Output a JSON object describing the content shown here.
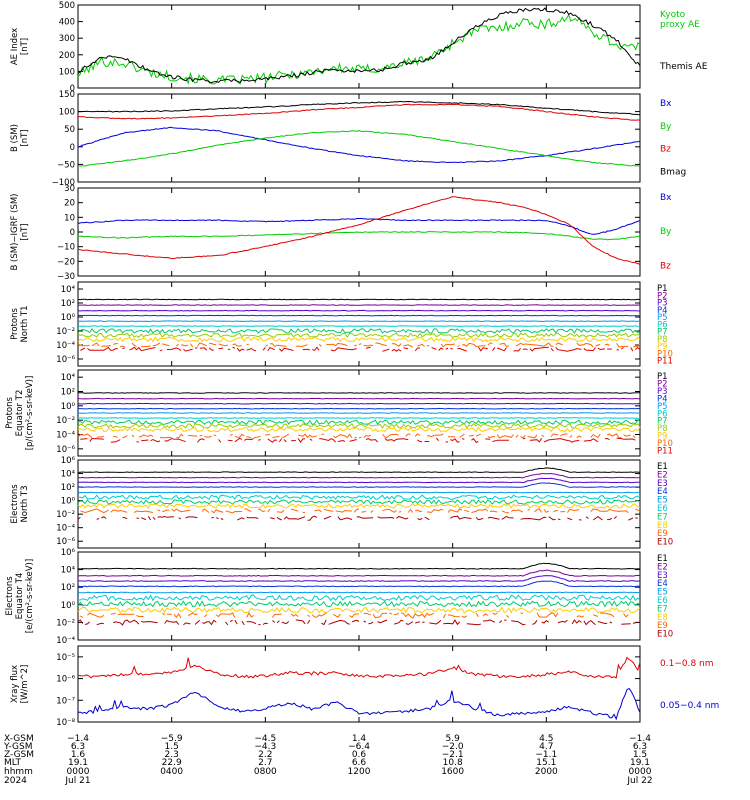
{
  "chart_data": [
    {
      "type": "line",
      "id": "ae",
      "ylabel": "AE Index\n[nT]",
      "ylim": [
        0,
        500
      ],
      "ticks": [
        0,
        100,
        200,
        300,
        400,
        500
      ],
      "tick_labels": [
        "0",
        "100",
        "200",
        "300",
        "400",
        "500"
      ],
      "series": [
        {
          "name": "Kyoto\nproxy AE",
          "color": "#00cc00",
          "x": [
            0,
            1,
            2,
            3,
            4,
            5,
            6,
            7,
            8,
            9,
            10,
            11,
            12,
            13,
            14,
            15,
            16,
            17,
            18,
            19,
            20,
            21,
            22,
            23,
            24
          ],
          "y": [
            80,
            160,
            150,
            95,
            70,
            55,
            45,
            50,
            60,
            80,
            100,
            120,
            110,
            120,
            150,
            180,
            270,
            350,
            360,
            400,
            380,
            430,
            340,
            260,
            240
          ]
        },
        {
          "name": "Themis AE",
          "color": "#000000",
          "x": [
            0,
            1,
            2,
            3,
            4,
            5,
            6,
            7,
            8,
            9,
            10,
            11,
            12,
            13,
            14,
            15,
            16,
            17,
            18,
            19,
            20,
            21,
            22,
            23,
            24
          ],
          "y": [
            95,
            190,
            175,
            110,
            65,
            50,
            40,
            45,
            55,
            70,
            95,
            110,
            100,
            110,
            150,
            175,
            270,
            370,
            440,
            470,
            470,
            450,
            380,
            290,
            130
          ]
        }
      ]
    },
    {
      "type": "line",
      "id": "bfield",
      "ylabel": "B (SM)\n[nT]",
      "ylim": [
        -100,
        150
      ],
      "ticks": [
        -100,
        -50,
        0,
        50,
        100,
        150
      ],
      "tick_labels": [
        "−100",
        "−50",
        "0",
        "50",
        "100",
        "150"
      ],
      "series": [
        {
          "name": "Bx",
          "color": "#0000dd",
          "x": [
            0,
            2,
            4,
            6,
            8,
            10,
            12,
            14,
            16,
            18,
            20,
            22,
            24
          ],
          "y": [
            0,
            40,
            55,
            45,
            20,
            -5,
            -25,
            -40,
            -45,
            -40,
            -25,
            -5,
            15
          ]
        },
        {
          "name": "By",
          "color": "#00cc00",
          "x": [
            0,
            2,
            4,
            6,
            8,
            10,
            12,
            14,
            16,
            18,
            20,
            22,
            24
          ],
          "y": [
            -55,
            -40,
            -20,
            5,
            25,
            40,
            45,
            35,
            15,
            -5,
            -25,
            -45,
            -55
          ]
        },
        {
          "name": "Bz",
          "color": "#dd0000",
          "x": [
            0,
            2,
            4,
            6,
            8,
            10,
            12,
            14,
            16,
            18,
            20,
            22,
            24
          ],
          "y": [
            85,
            80,
            82,
            88,
            95,
            105,
            112,
            120,
            120,
            115,
            100,
            85,
            75
          ]
        },
        {
          "name": "Bmag",
          "color": "#000000",
          "x": [
            0,
            2,
            4,
            6,
            8,
            10,
            12,
            14,
            16,
            18,
            20,
            22,
            24
          ],
          "y": [
            100,
            100,
            102,
            108,
            113,
            120,
            125,
            128,
            125,
            120,
            110,
            100,
            92
          ]
        }
      ]
    },
    {
      "type": "line",
      "id": "bdiff",
      "ylabel": "B (SM)−IGRF (SM)\n[nT]",
      "ylim": [
        -30,
        30
      ],
      "ticks": [
        -30,
        -20,
        -10,
        0,
        10,
        20,
        30
      ],
      "tick_labels": [
        "−30",
        "−20",
        "−10",
        "0",
        "10",
        "20",
        "30"
      ],
      "series": [
        {
          "name": "Bx",
          "color": "#0000dd",
          "x": [
            0,
            2,
            4,
            6,
            8,
            10,
            12,
            14,
            16,
            18,
            20,
            21,
            22,
            23,
            24
          ],
          "y": [
            6,
            8,
            8,
            8,
            7,
            8,
            9,
            8,
            8,
            8,
            8,
            4,
            -2,
            2,
            8
          ]
        },
        {
          "name": "By",
          "color": "#00cc00",
          "x": [
            0,
            2,
            4,
            6,
            8,
            10,
            12,
            14,
            16,
            18,
            20,
            21,
            22,
            23,
            24
          ],
          "y": [
            -3,
            -4,
            -3,
            -3,
            -2,
            -1,
            0,
            0,
            0,
            0,
            -1,
            -3,
            -5,
            -5,
            -3
          ]
        },
        {
          "name": "Bz",
          "color": "#dd0000",
          "x": [
            0,
            2,
            4,
            6,
            8,
            10,
            12,
            14,
            16,
            18,
            19,
            20,
            21,
            22,
            23,
            24
          ],
          "y": [
            -12,
            -15,
            -18,
            -16,
            -10,
            -3,
            5,
            15,
            24,
            20,
            17,
            12,
            5,
            -10,
            -18,
            -22
          ]
        }
      ]
    },
    {
      "type": "line",
      "id": "protons_t1",
      "log": true,
      "ylabel": "Protons\nNorth T1",
      "ylim": [
        -7,
        5
      ],
      "ticks": [
        -6,
        -4,
        -2,
        0,
        2,
        4
      ],
      "tick_labels": [
        "10⁻⁶",
        "10⁻⁴",
        "10⁻²",
        "10⁰",
        "10²",
        "10⁴"
      ],
      "channels": [
        {
          "name": "P1",
          "color": "#000000",
          "level": 2.5
        },
        {
          "name": "P2",
          "color": "#7a0099",
          "level": 1.7
        },
        {
          "name": "P3",
          "color": "#5500cc",
          "level": 0.9
        },
        {
          "name": "P4",
          "color": "#0033dd",
          "level": 0.2
        },
        {
          "name": "P5",
          "color": "#0099ee",
          "level": -0.6
        },
        {
          "name": "P6",
          "color": "#00cccc",
          "level": -1.3
        },
        {
          "name": "P7",
          "color": "#00cc66",
          "level": -2.0
        },
        {
          "name": "P8",
          "color": "#99cc00",
          "level": -2.6
        },
        {
          "name": "P9",
          "color": "#ffcc00",
          "level": -3.2
        },
        {
          "name": "P10",
          "color": "#ff6600",
          "level": -4.0
        },
        {
          "name": "P11",
          "color": "#dd0000",
          "level": -4.6
        }
      ]
    },
    {
      "type": "line",
      "id": "protons_t2",
      "log": true,
      "ylabel": "Protons\nEquator T2\n[p/(cm²-s-sr-keV)]",
      "ylim": [
        -7,
        5
      ],
      "ticks": [
        -6,
        -4,
        -2,
        0,
        2,
        4
      ],
      "tick_labels": [
        "10⁻⁶",
        "10⁻⁴",
        "10⁻²",
        "10⁰",
        "10²",
        "10⁴"
      ],
      "channels": [
        {
          "name": "P1",
          "color": "#000000",
          "level": 1.8
        },
        {
          "name": "P2",
          "color": "#7a0099",
          "level": 1.0
        },
        {
          "name": "P3",
          "color": "#5500cc",
          "level": 0.3
        },
        {
          "name": "P4",
          "color": "#0033dd",
          "level": -0.4
        },
        {
          "name": "P5",
          "color": "#0099ee",
          "level": -1.0
        },
        {
          "name": "P6",
          "color": "#00cccc",
          "level": -1.7
        },
        {
          "name": "P7",
          "color": "#00cc66",
          "level": -2.3
        },
        {
          "name": "P8",
          "color": "#99cc00",
          "level": -2.8
        },
        {
          "name": "P9",
          "color": "#ffcc00",
          "level": -3.3
        },
        {
          "name": "P10",
          "color": "#ff6600",
          "level": -4.2
        },
        {
          "name": "P11",
          "color": "#dd0000",
          "level": -4.8
        }
      ]
    },
    {
      "type": "line",
      "id": "electrons_t3",
      "log": true,
      "ylabel": "Electrons\nNorth T3",
      "ylim": [
        -7,
        6
      ],
      "ticks": [
        -6,
        -4,
        -2,
        0,
        2,
        4,
        6
      ],
      "tick_labels": [
        "10⁻⁶",
        "10⁻⁴",
        "10⁻²",
        "10⁰",
        "10²",
        "10⁴",
        "10⁶"
      ],
      "channels": [
        {
          "name": "E1",
          "color": "#000000",
          "level": 4.2
        },
        {
          "name": "E2",
          "color": "#7a0099",
          "level": 3.4
        },
        {
          "name": "E3",
          "color": "#5500cc",
          "level": 2.7
        },
        {
          "name": "E4",
          "color": "#0033dd",
          "level": 2.0
        },
        {
          "name": "E5",
          "color": "#0099ee",
          "level": 1.2
        },
        {
          "name": "E6",
          "color": "#00cccc",
          "level": 0.5
        },
        {
          "name": "E7",
          "color": "#00cc66",
          "level": -0.2
        },
        {
          "name": "E8",
          "color": "#ffcc00",
          "level": -0.8
        },
        {
          "name": "E9",
          "color": "#ff6600",
          "level": -1.5
        },
        {
          "name": "E10",
          "color": "#aa0000",
          "level": -2.6
        }
      ]
    },
    {
      "type": "line",
      "id": "electrons_t4",
      "log": true,
      "ylabel": "Electrons\nEquator T4\n[e/(cm²-s-sr-keV)]",
      "ylim": [
        -4,
        6
      ],
      "ticks": [
        -4,
        -2,
        0,
        2,
        4,
        6
      ],
      "tick_labels": [
        "10⁻⁴",
        "10⁻²",
        "10⁰",
        "10²",
        "10⁴",
        "10⁶"
      ],
      "channels": [
        {
          "name": "E1",
          "color": "#000000",
          "level": 4.1
        },
        {
          "name": "E2",
          "color": "#7a0099",
          "level": 3.3
        },
        {
          "name": "E3",
          "color": "#5500cc",
          "level": 2.7
        },
        {
          "name": "E4",
          "color": "#0033dd",
          "level": 2.1
        },
        {
          "name": "E5",
          "color": "#0099ee",
          "level": 1.4
        },
        {
          "name": "E6",
          "color": "#00cccc",
          "level": 0.8
        },
        {
          "name": "E7",
          "color": "#00cc66",
          "level": 0.1
        },
        {
          "name": "E8",
          "color": "#ffcc00",
          "level": -0.6
        },
        {
          "name": "E9",
          "color": "#ff6600",
          "level": -1.2
        },
        {
          "name": "E10",
          "color": "#aa0000",
          "level": -2.0
        }
      ]
    },
    {
      "type": "line",
      "id": "xray",
      "log": true,
      "ylabel": "Xray flux\n[W/m^2]",
      "ylim": [
        -8,
        -4.5
      ],
      "ticks": [
        -8,
        -7,
        -6,
        -5
      ],
      "tick_labels": [
        "10⁻⁸",
        "10⁻⁷",
        "10⁻⁶",
        "10⁻⁵"
      ],
      "series": [
        {
          "name": "0.1−0.8 nm",
          "color": "#dd0000",
          "x": [
            0,
            1,
            2,
            3,
            4,
            5,
            6,
            7,
            8,
            9,
            10,
            11,
            12,
            13,
            14,
            15,
            16,
            17,
            18,
            19,
            20,
            21,
            22,
            23,
            23.5,
            24
          ],
          "y": [
            -5.9,
            -5.9,
            -5.8,
            -5.8,
            -5.7,
            -5.4,
            -5.8,
            -5.9,
            -5.9,
            -5.7,
            -5.8,
            -5.7,
            -5.9,
            -5.9,
            -5.8,
            -5.8,
            -5.5,
            -5.8,
            -5.9,
            -5.9,
            -5.8,
            -5.7,
            -5.9,
            -5.9,
            -5.0,
            -5.7
          ]
        },
        {
          "name": "0.05−0.4 nm",
          "color": "#0000cc",
          "x": [
            0,
            1,
            2,
            3,
            4,
            5,
            6,
            7,
            8,
            9,
            10,
            11,
            12,
            13,
            14,
            15,
            16,
            17,
            18,
            19,
            20,
            21,
            22,
            23,
            23.5,
            24
          ],
          "y": [
            -7.6,
            -7.5,
            -7.3,
            -7.4,
            -7.2,
            -6.6,
            -7.3,
            -7.5,
            -7.4,
            -7.1,
            -7.4,
            -7.1,
            -7.6,
            -7.6,
            -7.5,
            -7.4,
            -7.0,
            -7.4,
            -7.7,
            -7.6,
            -7.5,
            -7.3,
            -7.6,
            -7.8,
            -6.3,
            -7.5
          ]
        }
      ]
    }
  ],
  "x_axis": {
    "range_hours": [
      0,
      24
    ],
    "tick_hours": [
      0,
      4,
      8,
      12,
      16,
      20,
      24
    ],
    "row_labels": [
      "X-GSM",
      "Y-GSM",
      "Z-GSM",
      "MLT",
      "hhmm",
      "2024"
    ],
    "columns": [
      [
        "−1.4",
        "6.3",
        "1.6",
        "19.1",
        "0000",
        "Jul 21"
      ],
      [
        "−5.9",
        "1.5",
        "2.3",
        "22.9",
        "0400",
        ""
      ],
      [
        "−4.5",
        "−4.3",
        "2.2",
        "2.7",
        "0800",
        ""
      ],
      [
        "1.4",
        "−6.4",
        "0.6",
        "6.6",
        "1200",
        ""
      ],
      [
        "5.9",
        "−2.0",
        "−2.1",
        "10.8",
        "1600",
        ""
      ],
      [
        "4.5",
        "4.7",
        "−1.1",
        "15.1",
        "2000",
        ""
      ],
      [
        "−1.4",
        "6.3",
        "1.5",
        "19.1",
        "0000",
        "Jul 22"
      ]
    ]
  }
}
